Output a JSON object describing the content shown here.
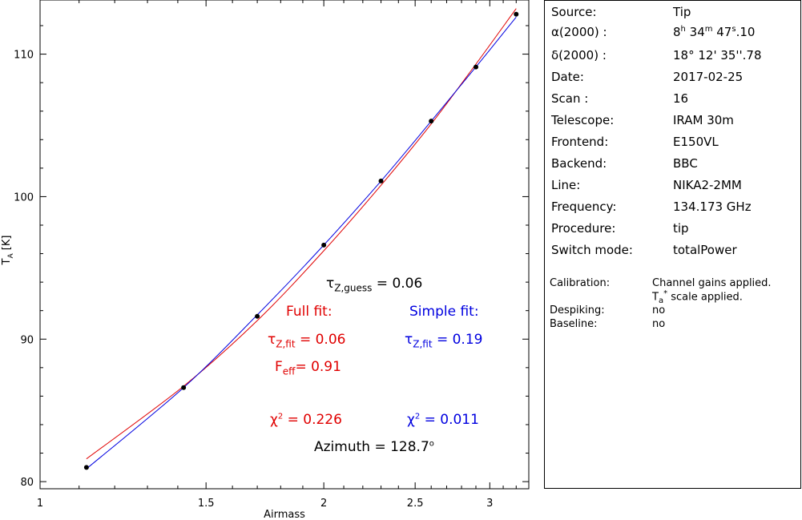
{
  "chart_data": {
    "type": "scatter",
    "xlabel": "Airmass",
    "ylabel": "T_A [K]",
    "x_scale": "log",
    "xlim": [
      1.0,
      3.3
    ],
    "ylim": [
      79.5,
      113.8
    ],
    "x_ticks": [
      "1",
      "1.5",
      "2",
      "2.5",
      "3"
    ],
    "y_ticks": [
      "80",
      "90",
      "100",
      "110"
    ],
    "grid": false,
    "series": [
      {
        "kind": "points",
        "color": "#000000",
        "x": [
          1.12,
          1.42,
          1.7,
          2.0,
          2.3,
          2.6,
          2.9,
          3.2
        ],
        "y": [
          81.0,
          86.6,
          91.6,
          96.6,
          101.1,
          105.3,
          109.1,
          112.8
        ]
      },
      {
        "kind": "fit-curve",
        "color": "#e00000",
        "x": [
          1.12,
          1.42,
          1.7,
          2.0,
          2.3,
          2.6,
          2.9,
          3.2
        ],
        "y": [
          81.6,
          86.7,
          91.3,
          96.2,
          100.8,
          105.1,
          109.3,
          113.2
        ]
      },
      {
        "kind": "fit-curve",
        "color": "#0000e0",
        "x": [
          1.12,
          1.42,
          1.7,
          2.0,
          2.3,
          2.6,
          2.9,
          3.2
        ],
        "y": [
          80.9,
          86.6,
          91.7,
          96.6,
          101.1,
          105.3,
          109.1,
          112.6
        ]
      }
    ]
  },
  "annotations": {
    "tau_guess_sym": "τ",
    "tau_guess_sub": "Z,guess",
    "tau_guess_val": " = 0.06",
    "full_fit_label": "Full fit:",
    "simple_fit_label": "Simple fit:",
    "tau_fit_red_sym": "τ",
    "tau_fit_red_sub": "Z,fit",
    "tau_fit_red_val": " = 0.06",
    "tau_fit_blue_sym": "τ",
    "tau_fit_blue_sub": "Z,fit",
    "tau_fit_blue_val": " = 0.19",
    "feff_sym": "F",
    "feff_sub": "eff",
    "feff_val": "= 0.91",
    "chi2_red_sym": "χ",
    "chi2_red_sup": "2",
    "chi2_red_val": " = 0.226",
    "chi2_blue_sym": "χ",
    "chi2_blue_sup": "2",
    "chi2_blue_val": " = 0.011",
    "azimuth_label": "Azimuth = 128.7",
    "azimuth_sup": "o"
  },
  "info": {
    "rows": [
      {
        "key": "Source:",
        "value": "Tip"
      },
      {
        "key": "Telescope:",
        "value": "IRAM 30m"
      },
      {
        "key": "Frontend:",
        "value": "E150VL"
      },
      {
        "key": "Backend:",
        "value": "BBC"
      },
      {
        "key": "Line:",
        "value": "NIKA2-2MM"
      },
      {
        "key": "Frequency:",
        "value": "134.173 GHz"
      },
      {
        "key": "Procedure:",
        "value": "tip"
      },
      {
        "key": "Switch mode:",
        "value": "totalPower"
      },
      {
        "key": "Date:",
        "value": "2017-02-25"
      },
      {
        "key": "Scan :",
        "value": "16"
      }
    ],
    "ra_key": "α(2000) :",
    "ra_h": "8",
    "ra_h_unit": "h",
    "ra_m": " 34",
    "ra_m_unit": "m",
    "ra_s": " 47",
    "ra_s_unit": "s",
    "ra_frac": ".10",
    "dec_key": "δ(2000) :",
    "dec_value": "18° 12' 35''.78",
    "calibration_key": "Calibration:",
    "calibration_value": "Channel gains applied.",
    "scale_T": "T",
    "scale_sub": "a",
    "scale_sup": "*",
    "scale_rest": " scale applied.",
    "despiking_key": "Despiking:",
    "despiking_value": "no",
    "baseline_key": "Baseline:",
    "baseline_value": "no"
  }
}
